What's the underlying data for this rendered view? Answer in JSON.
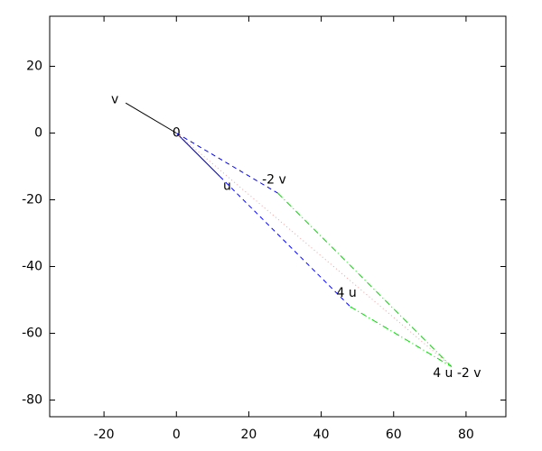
{
  "chart_data": {
    "type": "vector",
    "xlim": [
      -35,
      91
    ],
    "ylim": [
      -85,
      35
    ],
    "xticks": [
      -20,
      0,
      20,
      40,
      60,
      80
    ],
    "yticks": [
      -80,
      -60,
      -40,
      -20,
      0,
      20
    ],
    "series": [
      {
        "color": "#000000",
        "dash": "solid",
        "x": [
          0,
          -14
        ],
        "values": [
          0,
          9
        ]
      },
      {
        "color": "#000080",
        "dash": "solid",
        "x": [
          0,
          12
        ],
        "values": [
          0,
          -13
        ]
      },
      {
        "color": "#0000ff",
        "dash": "dashed",
        "x": [
          0,
          28
        ],
        "values": [
          0,
          -18
        ]
      },
      {
        "color": "#0000ff",
        "dash": "dashed",
        "x": [
          12,
          48
        ],
        "values": [
          -13,
          -52
        ]
      },
      {
        "color": "#00dd00",
        "dash": "dashdot",
        "x": [
          28,
          76
        ],
        "values": [
          -18,
          -70
        ]
      },
      {
        "color": "#00dd00",
        "dash": "dashdot",
        "x": [
          48,
          76
        ],
        "values": [
          -52,
          -70
        ]
      },
      {
        "color": "#f0a0a0",
        "dash": "dotted",
        "x": [
          0,
          76
        ],
        "values": [
          0,
          -70
        ]
      }
    ],
    "annotations": [
      {
        "text": "v",
        "x": -17,
        "y": 10
      },
      {
        "text": "0",
        "x": 0,
        "y": 0
      },
      {
        "text": "u",
        "x": 14,
        "y": -16
      },
      {
        "text": "-2 v",
        "x": 27,
        "y": -14
      },
      {
        "text": "4 u",
        "x": 47,
        "y": -48
      },
      {
        "text": "4 u -2 v",
        "x": 77.5,
        "y": -72
      }
    ]
  }
}
